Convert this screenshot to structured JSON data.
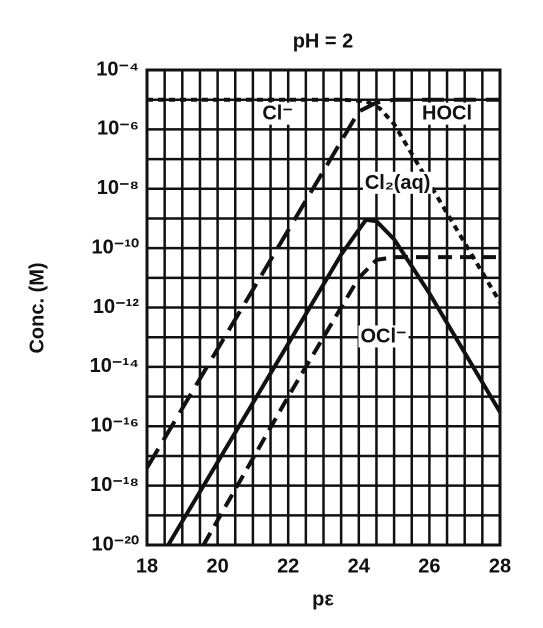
{
  "chart_data": {
    "type": "line",
    "title": "pH = 2",
    "x_label": "pε",
    "y_label": "Conc. (M)",
    "log_y": true,
    "grid": true,
    "color": "#111",
    "xlim": [
      18,
      28
    ],
    "ylim": [
      1e-20,
      0.0001
    ],
    "xticks": [
      18,
      20,
      22,
      24,
      26,
      28
    ],
    "xgrid": [
      18,
      18.5,
      19,
      19.5,
      20,
      20.5,
      21,
      21.5,
      22,
      22.5,
      23,
      23.5,
      24,
      24.5,
      25,
      25.5,
      26,
      26.5,
      27,
      27.5,
      28
    ],
    "yticks": [
      {
        "value": 0.0001,
        "label": "10⁻⁴"
      },
      {
        "value": 1e-05,
        "label": ""
      },
      {
        "value": 1e-06,
        "label": "10⁻⁶"
      },
      {
        "value": 1e-07,
        "label": ""
      },
      {
        "value": 1e-08,
        "label": "10⁻⁸"
      },
      {
        "value": 1e-09,
        "label": ""
      },
      {
        "value": 1e-10,
        "label": "10⁻¹⁰"
      },
      {
        "value": 1e-11,
        "label": ""
      },
      {
        "value": 1e-12,
        "label": "10⁻¹²"
      },
      {
        "value": 1e-13,
        "label": ""
      },
      {
        "value": 1e-14,
        "label": "10⁻¹⁴"
      },
      {
        "value": 1e-15,
        "label": ""
      },
      {
        "value": 1e-16,
        "label": "10⁻¹⁶"
      },
      {
        "value": 1e-17,
        "label": ""
      },
      {
        "value": 1e-18,
        "label": "10⁻¹⁸"
      },
      {
        "value": 1e-19,
        "label": ""
      },
      {
        "value": 1e-20,
        "label": "10⁻²⁰"
      }
    ],
    "series": [
      {
        "name": "Cl⁻",
        "dash": "6 5",
        "x": [
          18,
          23.5,
          24.2,
          24.6,
          25,
          26,
          27,
          28
        ],
        "values": [
          1e-05,
          1e-05,
          9e-06,
          5e-06,
          1.5e-06,
          1.5e-08,
          1.5e-10,
          1.5e-12
        ]
      },
      {
        "name": "HOCl",
        "dash": "22 10",
        "x": [
          18,
          20,
          22,
          24,
          24.5,
          25,
          28
        ],
        "values": [
          4e-18,
          4e-14,
          4e-10,
          4e-06,
          8e-06,
          1e-05,
          1e-05
        ]
      },
      {
        "name": "Cl₂(aq)",
        "dash": "none",
        "x": [
          18.6,
          22,
          23.5,
          24.2,
          24.5,
          25,
          26,
          28
        ],
        "values": [
          1e-20,
          6e-14,
          6e-11,
          9e-10,
          8e-10,
          2e-10,
          3e-12,
          3e-16
        ]
      },
      {
        "name": "OCl⁻",
        "dash": "14 8",
        "x": [
          19.6,
          22,
          24,
          24.5,
          25,
          28
        ],
        "values": [
          1e-20,
          1e-15,
          1e-11,
          4e-11,
          5e-11,
          5e-11
        ]
      }
    ]
  }
}
